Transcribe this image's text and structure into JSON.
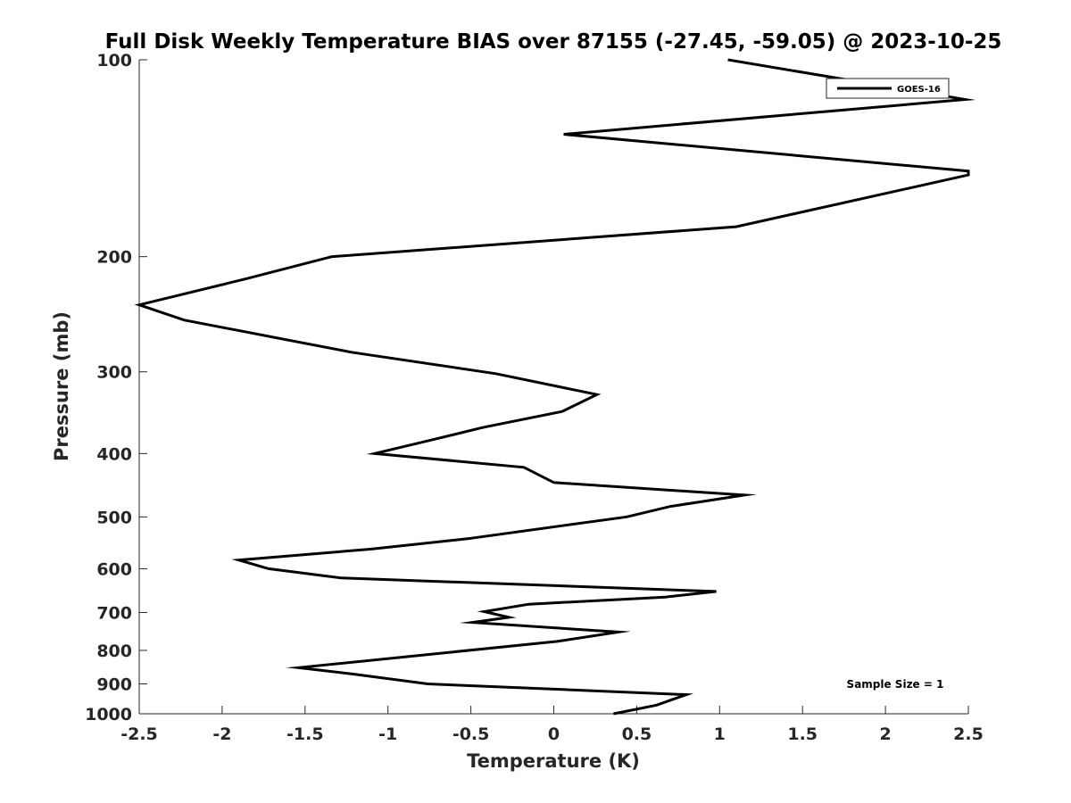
{
  "chart_data": {
    "type": "line",
    "title": "Full Disk Weekly Temperature BIAS over 87155 (-27.45, -59.05) @ 2023-10-25",
    "xlabel": "Temperature (K)",
    "ylabel": "Pressure (mb)",
    "xlim": [
      -2.5,
      2.5
    ],
    "ylim": [
      1000,
      100
    ],
    "yscale": "log",
    "xticks": [
      -2.5,
      -2,
      -1.5,
      -1,
      -0.5,
      0,
      0.5,
      1,
      1.5,
      2,
      2.5
    ],
    "xtick_labels": [
      "-2.5",
      "-2",
      "-1.5",
      "-1",
      "-0.5",
      "0",
      "0.5",
      "1",
      "1.5",
      "2",
      "2.5"
    ],
    "yticks": [
      100,
      200,
      300,
      400,
      500,
      600,
      700,
      800,
      900,
      1000
    ],
    "ytick_labels": [
      "100",
      "200",
      "300",
      "400",
      "500",
      "600",
      "700",
      "800",
      "900",
      "1000"
    ],
    "legend_position": "top-right",
    "annotation": "Sample Size = 1",
    "series": [
      {
        "name": "GOES-16",
        "color": "#000000",
        "points": [
          {
            "x": 1.05,
            "y": 100
          },
          {
            "x": 2.48,
            "y": 115
          },
          {
            "x": 0.06,
            "y": 130
          },
          {
            "x": 2.5,
            "y": 148
          },
          {
            "x": 2.5,
            "y": 150
          },
          {
            "x": 1.1,
            "y": 180
          },
          {
            "x": -1.34,
            "y": 200
          },
          {
            "x": -1.85,
            "y": 216
          },
          {
            "x": -2.5,
            "y": 237
          },
          {
            "x": -2.23,
            "y": 250
          },
          {
            "x": -1.22,
            "y": 280
          },
          {
            "x": -0.35,
            "y": 302
          },
          {
            "x": 0.26,
            "y": 325
          },
          {
            "x": 0.05,
            "y": 345
          },
          {
            "x": -0.43,
            "y": 365
          },
          {
            "x": -0.75,
            "y": 382
          },
          {
            "x": -1.08,
            "y": 400
          },
          {
            "x": -0.18,
            "y": 420
          },
          {
            "x": 0.0,
            "y": 443
          },
          {
            "x": 1.15,
            "y": 463
          },
          {
            "x": 0.7,
            "y": 482
          },
          {
            "x": 0.44,
            "y": 500
          },
          {
            "x": -0.52,
            "y": 540
          },
          {
            "x": -1.1,
            "y": 560
          },
          {
            "x": -1.9,
            "y": 582
          },
          {
            "x": -1.72,
            "y": 600
          },
          {
            "x": -1.28,
            "y": 620
          },
          {
            "x": 0.98,
            "y": 650
          },
          {
            "x": 0.67,
            "y": 663
          },
          {
            "x": -0.15,
            "y": 680
          },
          {
            "x": -0.42,
            "y": 698
          },
          {
            "x": -0.27,
            "y": 712
          },
          {
            "x": -0.49,
            "y": 725
          },
          {
            "x": 0.39,
            "y": 750
          },
          {
            "x": 0.02,
            "y": 775
          },
          {
            "x": -1.54,
            "y": 850
          },
          {
            "x": -1.2,
            "y": 870
          },
          {
            "x": -0.76,
            "y": 900
          },
          {
            "x": 0.8,
            "y": 935
          },
          {
            "x": 0.72,
            "y": 950
          },
          {
            "x": 0.62,
            "y": 970
          },
          {
            "x": 0.36,
            "y": 1000
          }
        ]
      }
    ]
  }
}
